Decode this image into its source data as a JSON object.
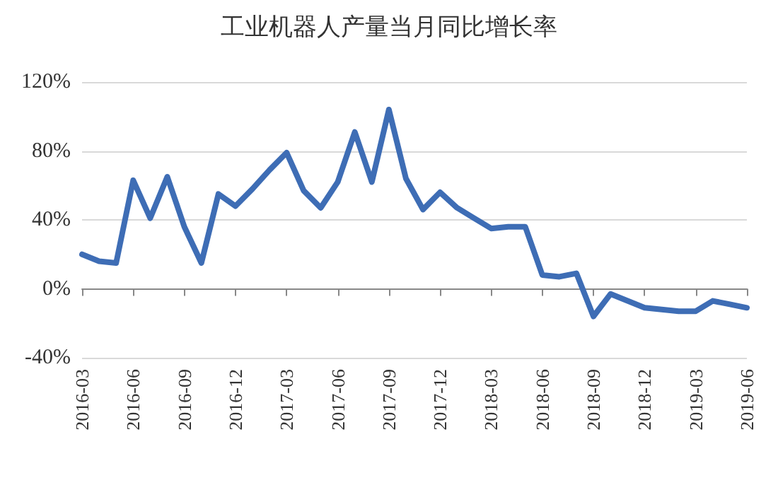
{
  "chart_data": {
    "type": "line",
    "title": "工业机器人产量当月同比增长率",
    "categories": [
      "2016-03",
      null,
      null,
      "2016-06",
      null,
      null,
      "2016-09",
      null,
      null,
      "2016-12",
      null,
      null,
      "2017-03",
      null,
      null,
      "2017-06",
      null,
      null,
      "2017-09",
      null,
      null,
      "2017-12",
      null,
      null,
      "2018-03",
      null,
      null,
      "2018-06",
      null,
      null,
      "2018-09",
      null,
      null,
      "2018-12",
      null,
      null,
      "2019-03",
      null,
      null,
      "2019-06"
    ],
    "series": [
      {
        "color": "#3e6db5",
        "values": [
          20,
          16,
          15,
          63,
          41,
          65,
          36,
          15,
          55,
          48,
          58,
          69,
          79,
          57,
          47,
          62,
          91,
          62,
          104,
          64,
          46,
          56,
          47,
          41,
          35,
          36,
          36,
          8,
          7,
          9,
          -16,
          -3,
          -7,
          -11,
          -12,
          -13,
          -13,
          -7,
          -9,
          -11
        ]
      }
    ],
    "ylim": [
      -40,
      120
    ],
    "yticks": [
      {
        "value": -40,
        "label": "-40%"
      },
      {
        "value": 0,
        "label": "0%"
      },
      {
        "value": 40,
        "label": "40%"
      },
      {
        "value": 80,
        "label": "80%"
      },
      {
        "value": 120,
        "label": "120%"
      }
    ],
    "grid": "y",
    "marker": "none",
    "line_style": "solid"
  }
}
